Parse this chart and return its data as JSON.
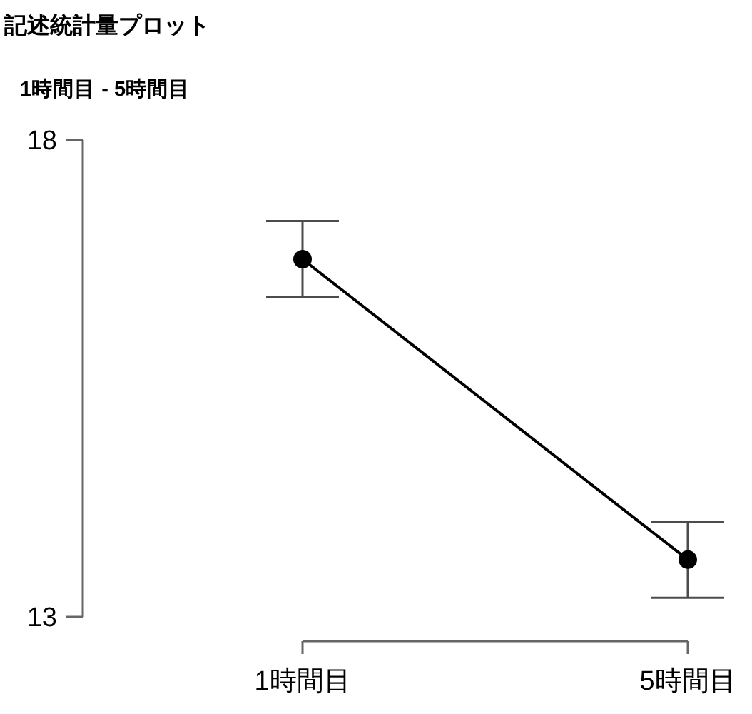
{
  "chart_data": {
    "type": "line",
    "title": "記述統計量プロット",
    "subtitle": "1時間目 - 5時間目",
    "categories": [
      "1時間目",
      "5時間目"
    ],
    "series": [
      {
        "color": "#000000",
        "values": [
          16.75,
          13.6
        ],
        "errors": [
          0.4,
          0.4
        ]
      }
    ],
    "ylim": [
      13,
      18
    ],
    "yticks": [
      13,
      18
    ],
    "marker": "circle",
    "line_style": "solid"
  }
}
